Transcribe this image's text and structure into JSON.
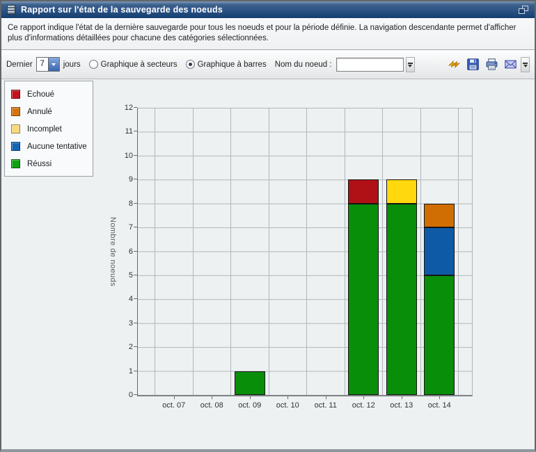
{
  "window": {
    "title": "Rapport sur l'état de la sauvegarde des noeuds",
    "description": "Ce rapport indique l'état de la dernière sauvegarde pour tous les noeuds et pour la période définie. La navigation descendante permet d'afficher plus d'informations détaillées pour chacune des catégories sélectionnées.",
    "icons": [
      "list-icon",
      "restore-icon"
    ]
  },
  "toolbar": {
    "period_label_prefix": "Dernier",
    "period_value": "7",
    "period_label_suffix": "jours",
    "chart_type_options": [
      {
        "label": "Graphique à secteurs",
        "selected": false
      },
      {
        "label": "Graphique à barres",
        "selected": true
      }
    ],
    "node_name_label": "Nom du noeud :",
    "node_name_value": "",
    "action_icons": [
      "refresh-icon",
      "save-icon",
      "print-icon",
      "email-icon"
    ],
    "overflow_icons": [
      "toolbar-overflow-button",
      "toolbar-overflow-button"
    ]
  },
  "legend": {
    "items": [
      {
        "label": "Echoué",
        "color": "#C11420"
      },
      {
        "label": "Annulé",
        "color": "#D3740E"
      },
      {
        "label": "Incomplet",
        "color": "#FAD97B"
      },
      {
        "label": "Aucune tentative",
        "color": "#1566B2"
      },
      {
        "label": "Réussi",
        "color": "#11A011"
      }
    ]
  },
  "chart_data": {
    "type": "bar",
    "stacked": true,
    "title": "",
    "xlabel": "",
    "ylabel": "Nombre de noeuds",
    "categories": [
      "oct. 07",
      "oct. 08",
      "oct. 09",
      "oct. 10",
      "oct. 11",
      "oct. 12",
      "oct. 13",
      "oct. 14"
    ],
    "series": [
      {
        "name": "Echoué",
        "color": "#B01116",
        "values": [
          0,
          0,
          0,
          0,
          0,
          1,
          0,
          0
        ]
      },
      {
        "name": "Annulé",
        "color": "#D06E04",
        "values": [
          0,
          0,
          0,
          0,
          0,
          0,
          0,
          1
        ]
      },
      {
        "name": "Incomplet",
        "color": "#FFD80D",
        "values": [
          0,
          0,
          0,
          0,
          0,
          0,
          1,
          0
        ]
      },
      {
        "name": "Aucune tentative",
        "color": "#0E5AA7",
        "values": [
          0,
          0,
          0,
          0,
          0,
          0,
          0,
          2
        ]
      },
      {
        "name": "Réussi",
        "color": "#098E09",
        "values": [
          0,
          0,
          1,
          0,
          0,
          8,
          8,
          5
        ]
      }
    ],
    "stack_order_bottom_to_top": [
      "Réussi",
      "Aucune tentative",
      "Incomplet",
      "Annulé",
      "Echoué"
    ],
    "totals_per_category": [
      0,
      0,
      1,
      0,
      0,
      9,
      9,
      8
    ],
    "ylim": [
      0,
      12
    ],
    "y_tick_step": 1,
    "grid": true,
    "legend_position": "top-left",
    "colors": {
      "grid": "#B3B6B9",
      "plot_background": "#EDF1F2",
      "axis": "#66696D"
    }
  }
}
